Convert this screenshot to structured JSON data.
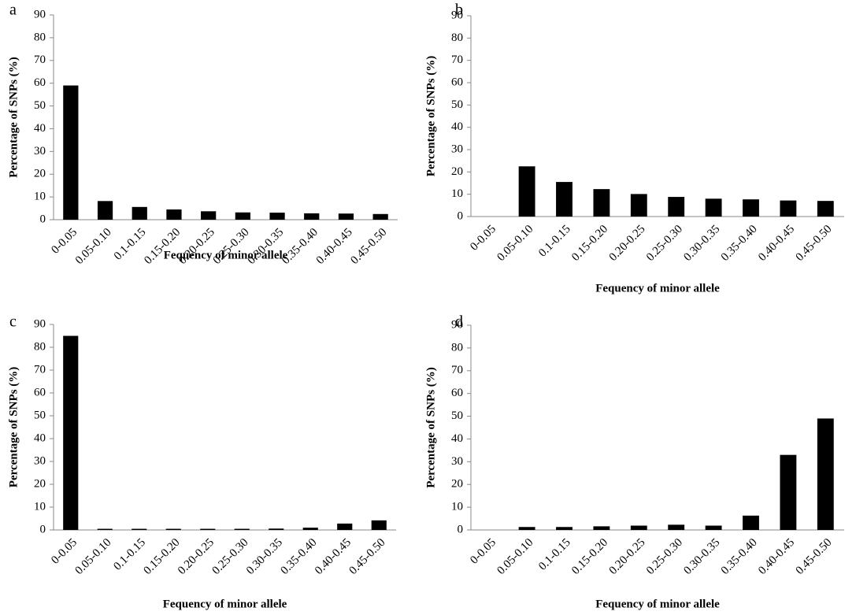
{
  "chart_data": [
    {
      "type": "bar",
      "panel_label": "a",
      "ylabel": "Percentage of SNPs (%)",
      "xlabel": "Fequency of minor allele",
      "categories": [
        "0-0.05",
        "0.05-0.10",
        "0.1-0.15",
        "0.15-0.20",
        "0.20-0.25",
        "0.25-0.30",
        "0.30-0.35",
        "0.35-0.40",
        "0.40-0.45",
        "0.45-0.50"
      ],
      "values": [
        59,
        8.2,
        5.6,
        4.5,
        3.7,
        3.2,
        3.1,
        2.8,
        2.7,
        2.5
      ],
      "color": "#000000",
      "ylim": [
        0,
        90
      ],
      "yticks": [
        0,
        10,
        20,
        30,
        40,
        50,
        60,
        70,
        80,
        90
      ]
    },
    {
      "type": "bar",
      "panel_label": "b",
      "ylabel": "Percentage of SNPs (%)",
      "xlabel": "Fequency of minor allele",
      "categories": [
        "0-0.05",
        "0.05-0.10",
        "0.1-0.15",
        "0.15-0.20",
        "0.20-0.25",
        "0.25-0.30",
        "0.30-0.35",
        "0.35-0.40",
        "0.40-0.45",
        "0.45-0.50"
      ],
      "values": [
        0,
        22.5,
        15.5,
        12.3,
        10.1,
        8.8,
        8.0,
        7.7,
        7.2,
        7.0
      ],
      "color": "#000000",
      "ylim": [
        0,
        90
      ],
      "yticks": [
        0,
        10,
        20,
        30,
        40,
        50,
        60,
        70,
        80,
        90
      ]
    },
    {
      "type": "bar",
      "panel_label": "c",
      "ylabel": "Percentage of SNPs (%)",
      "xlabel": "Fequency of minor allele",
      "categories": [
        "0-0.05",
        "0.05-0.10",
        "0.1-0.15",
        "0.15-0.20",
        "0.20-0.25",
        "0.25-0.30",
        "0.30-0.35",
        "0.35-0.40",
        "0.40-0.45",
        "0.45-0.50"
      ],
      "values": [
        85,
        0.5,
        0.5,
        0.5,
        0.5,
        0.5,
        0.6,
        1.0,
        2.8,
        4.2
      ],
      "color": "#000000",
      "ylim": [
        0,
        90
      ],
      "yticks": [
        0,
        10,
        20,
        30,
        40,
        50,
        60,
        70,
        80,
        90
      ]
    },
    {
      "type": "bar",
      "panel_label": "d",
      "ylabel": "Percentage of SNPs (%)",
      "xlabel": "Fequency of minor allele",
      "categories": [
        "0-0.05",
        "0.05-0.10",
        "0.1-0.15",
        "0.15-0.20",
        "0.20-0.25",
        "0.25-0.30",
        "0.30-0.35",
        "0.35-0.40",
        "0.40-0.45",
        "0.45-0.50"
      ],
      "values": [
        0,
        1.3,
        1.3,
        1.6,
        1.9,
        2.3,
        1.9,
        6.3,
        33,
        49
      ],
      "color": "#000000",
      "ylim": [
        0,
        90
      ],
      "yticks": [
        0,
        10,
        20,
        30,
        40,
        50,
        60,
        70,
        80,
        90
      ]
    }
  ]
}
